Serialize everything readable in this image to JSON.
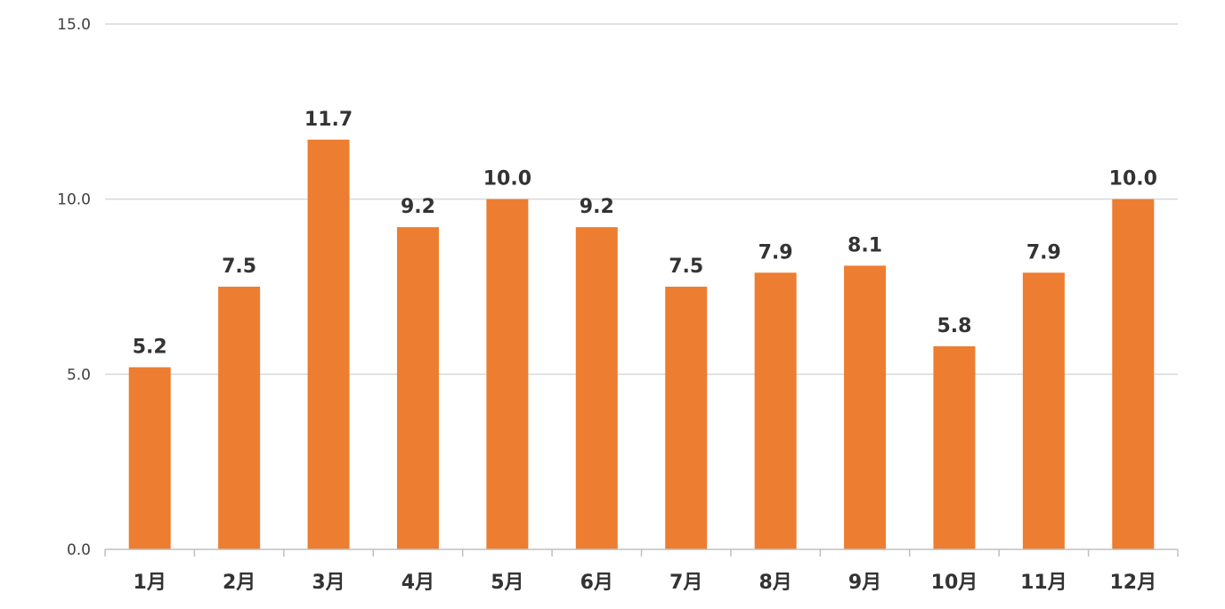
{
  "chart_data": {
    "type": "bar",
    "categories": [
      "1月",
      "2月",
      "3月",
      "4月",
      "5月",
      "6月",
      "7月",
      "8月",
      "9月",
      "10月",
      "11月",
      "12月"
    ],
    "series": [
      {
        "values": [
          5.2,
          7.5,
          11.7,
          9.2,
          10.0,
          9.2,
          7.5,
          7.9,
          8.1,
          5.8,
          7.9,
          10.0
        ],
        "data_labels": [
          "5.2",
          "7.5",
          "11.7",
          "9.2",
          "10.0",
          "9.2",
          "7.5",
          "7.9",
          "8.1",
          "5.8",
          "7.9",
          "10.0"
        ],
        "color": "#ED7D31"
      }
    ],
    "y_ticks": [
      0,
      5,
      10,
      15
    ],
    "y_tick_labels": [
      "0.0",
      "5.0",
      "10.0",
      "15.0"
    ],
    "ylim": [
      0,
      15
    ],
    "grid": true,
    "legend": "none",
    "title": "",
    "xlabel": "",
    "ylabel": ""
  }
}
